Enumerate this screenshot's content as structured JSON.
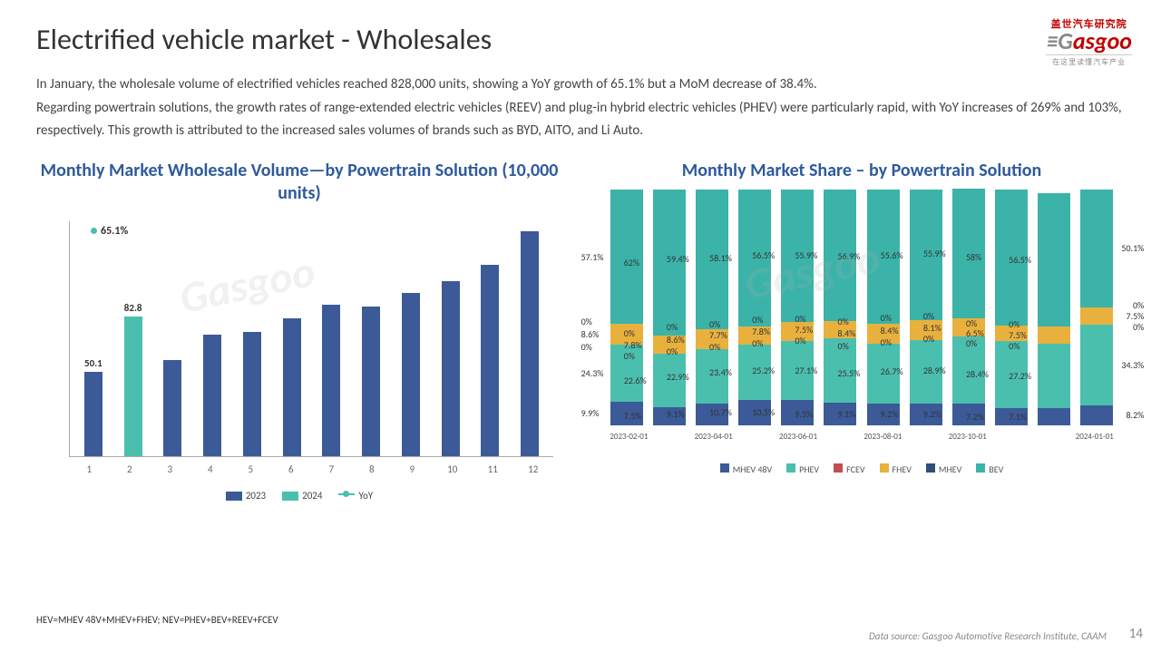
{
  "title": "Electrified vehicle market - Wholesales",
  "logo": {
    "chinese": "盖世汽车研究院",
    "brand_pre": "G",
    "brand": "asgoo",
    "tag": "在这里读懂汽车产业"
  },
  "body": "In January, the wholesale volume of electrified vehicles reached 828,000 units, showing a YoY growth of 65.1% but a MoM decrease of 38.4%.\nRegarding powertrain solutions, the growth rates of range-extended electric vehicles (REEV) and plug-in hybrid electric vehicles (PHEV) were particularly rapid, with YoY increases of 269% and 103%, respectively. This growth is attributed to the increased sales volumes of brands such as BYD, AITO, and Li Auto.",
  "chart1": {
    "title": "Monthly Market Wholesale Volume—by Powertrain Solution (10,000 units)",
    "ymax": 140,
    "yoy_label": "65.1%",
    "categories": [
      "1",
      "2",
      "3",
      "4",
      "5",
      "6",
      "7",
      "8",
      "9",
      "10",
      "11",
      "12"
    ],
    "bars": [
      {
        "v": 50.1,
        "c": "#3B5A97",
        "label": "50.1"
      },
      {
        "v": 82.8,
        "c": "#4BBFAE",
        "label": "82.8"
      },
      {
        "v": 57,
        "c": "#3B5A97"
      },
      {
        "v": 72,
        "c": "#3B5A97"
      },
      {
        "v": 74,
        "c": "#3B5A97"
      },
      {
        "v": 82,
        "c": "#3B5A97"
      },
      {
        "v": 90,
        "c": "#3B5A97"
      },
      {
        "v": 89,
        "c": "#3B5A97"
      },
      {
        "v": 97,
        "c": "#3B5A97"
      },
      {
        "v": 104,
        "c": "#3B5A97"
      },
      {
        "v": 114,
        "c": "#3B5A97"
      },
      {
        "v": 134,
        "c": "#3B5A97"
      }
    ],
    "legend": [
      {
        "label": "2023",
        "color": "#3B5A97",
        "type": "box"
      },
      {
        "label": "2024",
        "color": "#4BBFAE",
        "type": "box"
      },
      {
        "label": "YoY",
        "color": "#4BBFAE",
        "type": "line"
      }
    ]
  },
  "chart2": {
    "title": "Monthly Market Share – by Powertrain Solution",
    "xlabels": [
      "2023-02-01",
      "",
      "2023-04-01",
      "",
      "2023-06-01",
      "",
      "2023-08-01",
      "",
      "2023-10-01",
      "",
      "",
      "2024-01-01"
    ],
    "colors": {
      "MHEV48V": "#3B5A97",
      "PHEV": "#4BBFAE",
      "FCEV": "#C0504D",
      "FHEV": "#E8B13E",
      "MHEV": "#2F4E7A",
      "BEV": "#3BB3A8"
    },
    "order": [
      "MHEV48V",
      "PHEV",
      "FHEV",
      "BEV"
    ],
    "stacks": [
      {
        "MHEV48V": 9.9,
        "PHEV": 24.3,
        "FHEV": 8.6,
        "BEV": 57.1
      },
      {
        "MHEV48V": 7.5,
        "PHEV": 22.6,
        "FHEV": 7.8,
        "BEV": 62.0
      },
      {
        "MHEV48V": 9.1,
        "PHEV": 22.9,
        "FHEV": 8.6,
        "BEV": 59.4
      },
      {
        "MHEV48V": 10.7,
        "PHEV": 23.4,
        "FHEV": 7.7,
        "BEV": 58.1
      },
      {
        "MHEV48V": 10.5,
        "PHEV": 25.2,
        "FHEV": 7.8,
        "BEV": 56.5
      },
      {
        "MHEV48V": 9.5,
        "PHEV": 27.1,
        "FHEV": 7.5,
        "BEV": 55.9
      },
      {
        "MHEV48V": 9.1,
        "PHEV": 25.5,
        "FHEV": 8.4,
        "BEV": 56.9
      },
      {
        "MHEV48V": 9.2,
        "PHEV": 26.7,
        "FHEV": 8.4,
        "BEV": 55.6
      },
      {
        "MHEV48V": 9.2,
        "PHEV": 28.9,
        "FHEV": 8.1,
        "BEV": 55.9
      },
      {
        "MHEV48V": 7.2,
        "PHEV": 28.4,
        "FHEV": 6.5,
        "BEV": 58.0
      },
      {
        "MHEV48V": 7.1,
        "PHEV": 27.2,
        "FHEV": 7.5,
        "BEV": 56.5
      },
      {
        "MHEV48V": 8.2,
        "PHEV": 34.3,
        "FHEV": 7.5,
        "BEV": 50.1
      }
    ],
    "zero_label": "0%",
    "legend": [
      "MHEV 48V",
      "PHEV",
      "FCEV",
      "FHEV",
      "MHEV",
      "BEV"
    ],
    "legend_colors": [
      "#3B5A97",
      "#4BBFAE",
      "#C0504D",
      "#E8B13E",
      "#2F4E7A",
      "#3BB3A8"
    ]
  },
  "footnote": "HEV=MHEV 48V+MHEV+FHEV; NEV=PHEV+BEV+REEV+FCEV",
  "source": "Data source: Gasgoo Automotive Research Institute, CAAM",
  "page_number": "14",
  "watermark": "Gasgoo"
}
